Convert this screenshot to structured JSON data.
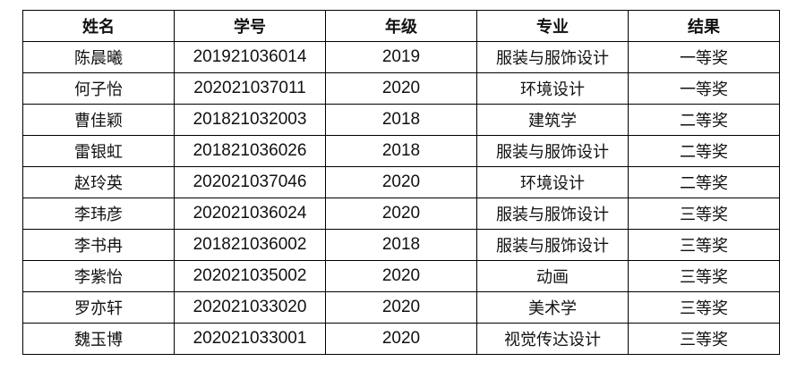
{
  "table": {
    "headers": [
      "姓名",
      "学号",
      "年级",
      "专业",
      "结果"
    ],
    "rows": [
      [
        "陈晨曦",
        "201921036014",
        "2019",
        "服装与服饰设计",
        "一等奖"
      ],
      [
        "何子怡",
        "202021037011",
        "2020",
        "环境设计",
        "一等奖"
      ],
      [
        "曹佳颖",
        "201821032003",
        "2018",
        "建筑学",
        "二等奖"
      ],
      [
        "雷银虹",
        "201821036026",
        "2018",
        "服装与服饰设计",
        "二等奖"
      ],
      [
        "赵玲英",
        "202021037046",
        "2020",
        "环境设计",
        "二等奖"
      ],
      [
        "李玮彦",
        "202021036024",
        "2020",
        "服装与服饰设计",
        "三等奖"
      ],
      [
        "李书冉",
        "201821036002",
        "2018",
        "服装与服饰设计",
        "三等奖"
      ],
      [
        "李紫怡",
        "202021035002",
        "2020",
        "动画",
        "三等奖"
      ],
      [
        "罗亦轩",
        "202021033020",
        "2020",
        "美术学",
        "三等奖"
      ],
      [
        "魏玉博",
        "202021033001",
        "2020",
        "视觉传达设计",
        "三等奖"
      ]
    ]
  }
}
